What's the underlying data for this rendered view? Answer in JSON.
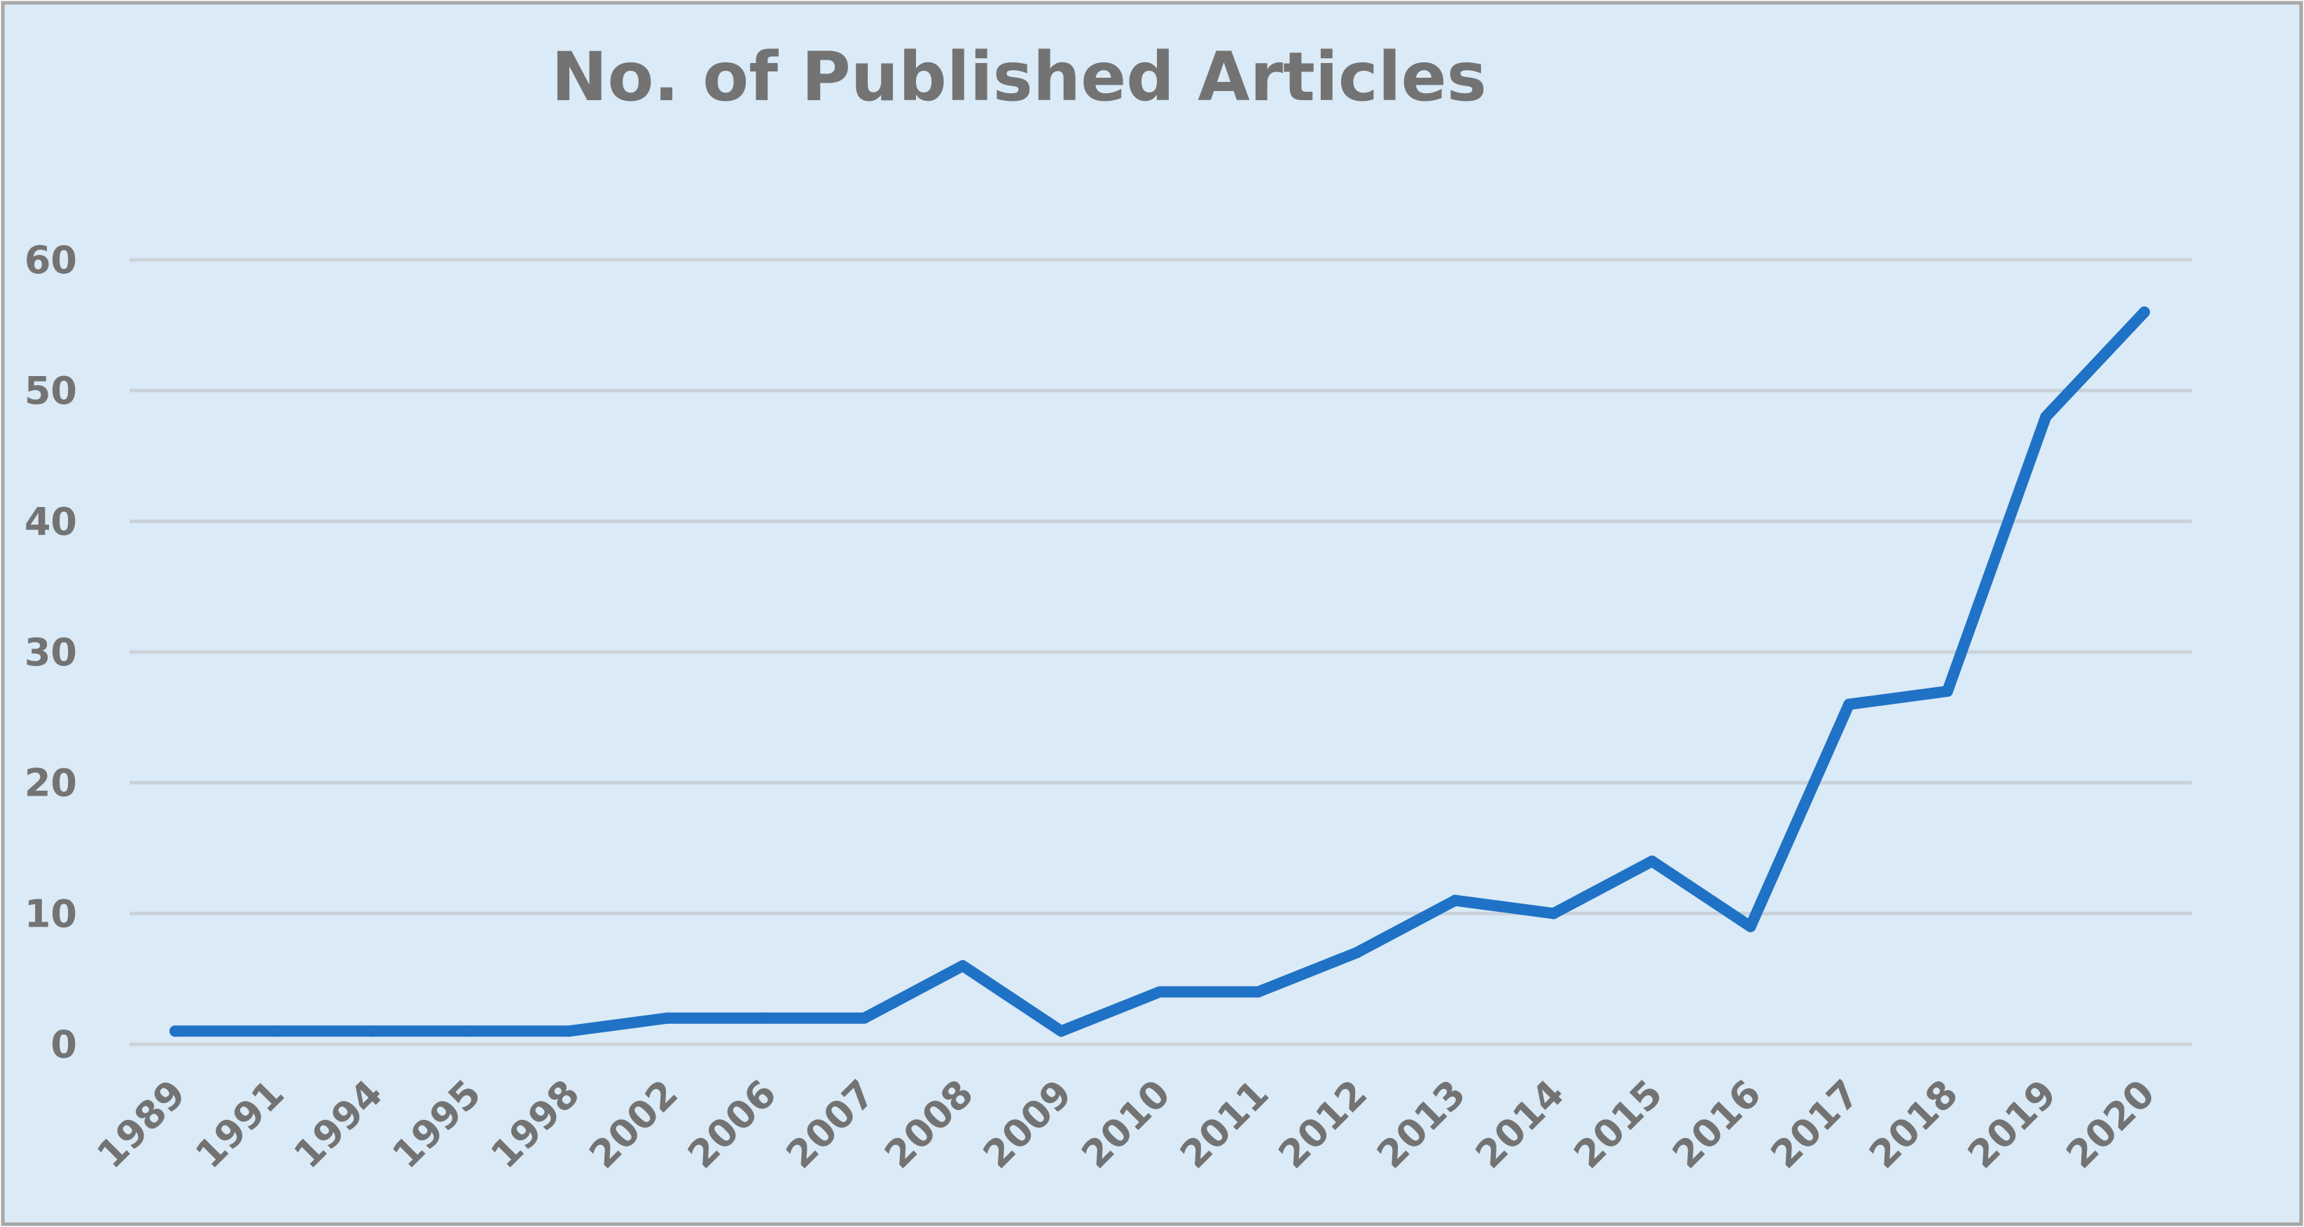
{
  "colors": {
    "background": "#daeaf6",
    "border": "#a6a6a6",
    "series": "#1f72c6",
    "gridline": "#c9d2da",
    "text": "#737373"
  },
  "chart_data": {
    "type": "line",
    "title": "No. of Published Articles",
    "xlabel": "",
    "ylabel": "",
    "categories": [
      "1989",
      "1991",
      "1994",
      "1995",
      "1998",
      "2002",
      "2006",
      "2007",
      "2008",
      "2009",
      "2010",
      "2011",
      "2012",
      "2013",
      "2014",
      "2015",
      "2016",
      "2017",
      "2018",
      "2019",
      "2020"
    ],
    "series": [
      {
        "values": [
          1,
          1,
          1,
          1,
          1,
          2,
          2,
          2,
          6,
          1,
          4,
          4,
          7,
          11,
          10,
          14,
          9,
          26,
          27,
          48,
          56
        ]
      }
    ],
    "ylim": [
      0,
      60
    ],
    "yticks": [
      0,
      10,
      20,
      30,
      40,
      50,
      60
    ],
    "grid": true,
    "legend": "none"
  }
}
